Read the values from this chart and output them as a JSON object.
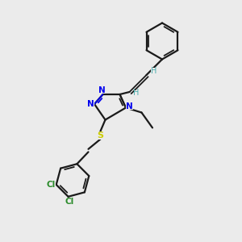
{
  "background_color": "#ebebeb",
  "bond_color": "#1a1a1a",
  "N_color": "#0000ee",
  "S_color": "#cccc00",
  "Cl_color": "#2a8a2a",
  "H_color": "#4aadad",
  "figsize": [
    3.0,
    3.0
  ],
  "dpi": 100,
  "xlim": [
    0,
    10
  ],
  "ylim": [
    0,
    10
  ]
}
